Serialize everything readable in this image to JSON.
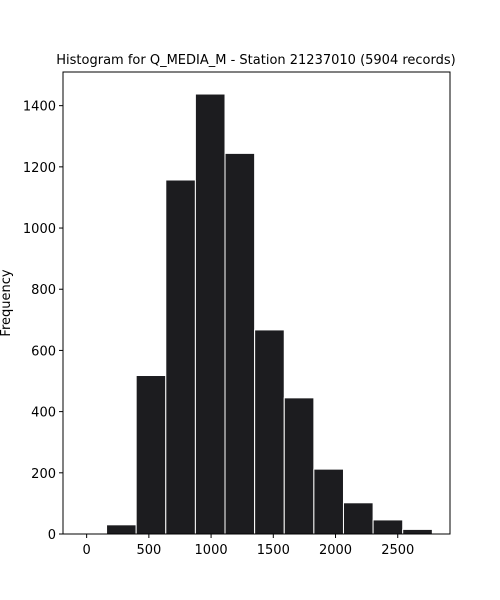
{
  "chart_data": {
    "type": "bar",
    "title": "Histogram for Q_MEDIA_M - Station 21237010 (5904 records)",
    "xlabel": "",
    "ylabel": "Frequency",
    "bins": [
      {
        "start": 160,
        "end": 398,
        "count": 30
      },
      {
        "start": 398,
        "end": 636,
        "count": 518
      },
      {
        "start": 636,
        "end": 874,
        "count": 1157
      },
      {
        "start": 874,
        "end": 1112,
        "count": 1438
      },
      {
        "start": 1112,
        "end": 1350,
        "count": 1244
      },
      {
        "start": 1350,
        "end": 1588,
        "count": 667
      },
      {
        "start": 1588,
        "end": 1826,
        "count": 445
      },
      {
        "start": 1826,
        "end": 2064,
        "count": 212
      },
      {
        "start": 2064,
        "end": 2302,
        "count": 102
      },
      {
        "start": 2302,
        "end": 2540,
        "count": 46
      },
      {
        "start": 2540,
        "end": 2778,
        "count": 15
      }
    ],
    "xlim": [
      -190,
      2920
    ],
    "ylim": [
      0,
      1510
    ],
    "xticks": [
      0,
      500,
      1000,
      1500,
      2000,
      2500
    ],
    "yticks": [
      0,
      200,
      400,
      600,
      800,
      1000,
      1200,
      1400
    ],
    "bar_color": "#1c1c1f",
    "bar_edge_color": "#ffffff",
    "grid": false,
    "legend": "none"
  }
}
